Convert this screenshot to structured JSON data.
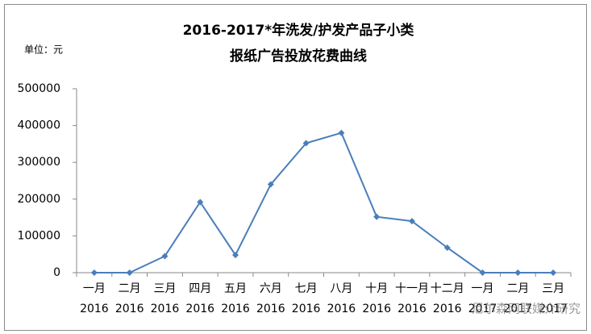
{
  "chart_data": {
    "type": "line",
    "title": "2016-2017*年洗发/护发产品子小类",
    "subtitle": "报纸广告投放花费曲线",
    "unit_label": "单位：元",
    "categories": [
      "一月",
      "二月",
      "三月",
      "四月",
      "五月",
      "六月",
      "七月",
      "八月",
      "十月",
      "十一月",
      "十二月",
      "一月",
      "二月",
      "三月"
    ],
    "category_years": [
      "2016",
      "2016",
      "2016",
      "2016",
      "2016",
      "2016",
      "2016",
      "2016",
      "2016",
      "2016",
      "2016",
      "2017",
      "2017",
      "2017"
    ],
    "values": [
      0,
      0,
      45000,
      192000,
      48000,
      240000,
      352000,
      380000,
      152000,
      140000,
      68000,
      0,
      0,
      0
    ],
    "color": "#4a7ebb",
    "ylim": [
      0,
      500000
    ],
    "yticks": [
      0,
      100000,
      200000,
      300000,
      400000,
      500000
    ],
    "grid": false,
    "watermark": "尼尔森网联媒介研究"
  }
}
